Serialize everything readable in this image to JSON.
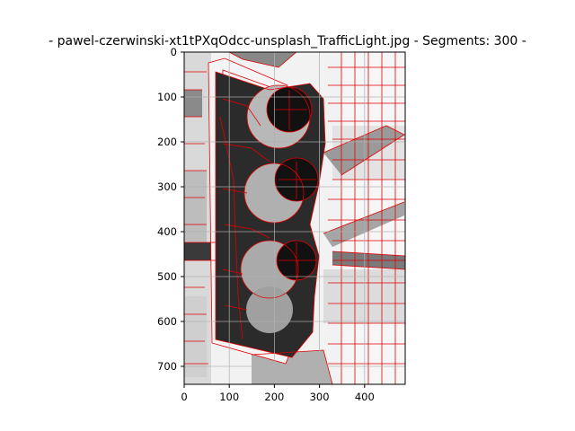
{
  "chart_data": {
    "type": "image",
    "title": "- pawel-czerwinski-xt1tPXqOdcc-unsplash_TrafficLight.jpg - Segments: 300 -",
    "xlabel": "",
    "ylabel": "",
    "xlim": [
      0,
      490
    ],
    "ylim": [
      740,
      0
    ],
    "xticks": [
      0,
      100,
      200,
      300,
      400
    ],
    "yticks": [
      0,
      100,
      200,
      300,
      400,
      500,
      600,
      700
    ],
    "grid": true,
    "segments": 300,
    "colors": {
      "boundary": "#e00000",
      "light_bg": "#f2f2f2",
      "mid_gray": "#b4b4b4",
      "dark_gray": "#7a7a7a",
      "body": "#2a2a2a",
      "lamp": "#111111"
    }
  }
}
